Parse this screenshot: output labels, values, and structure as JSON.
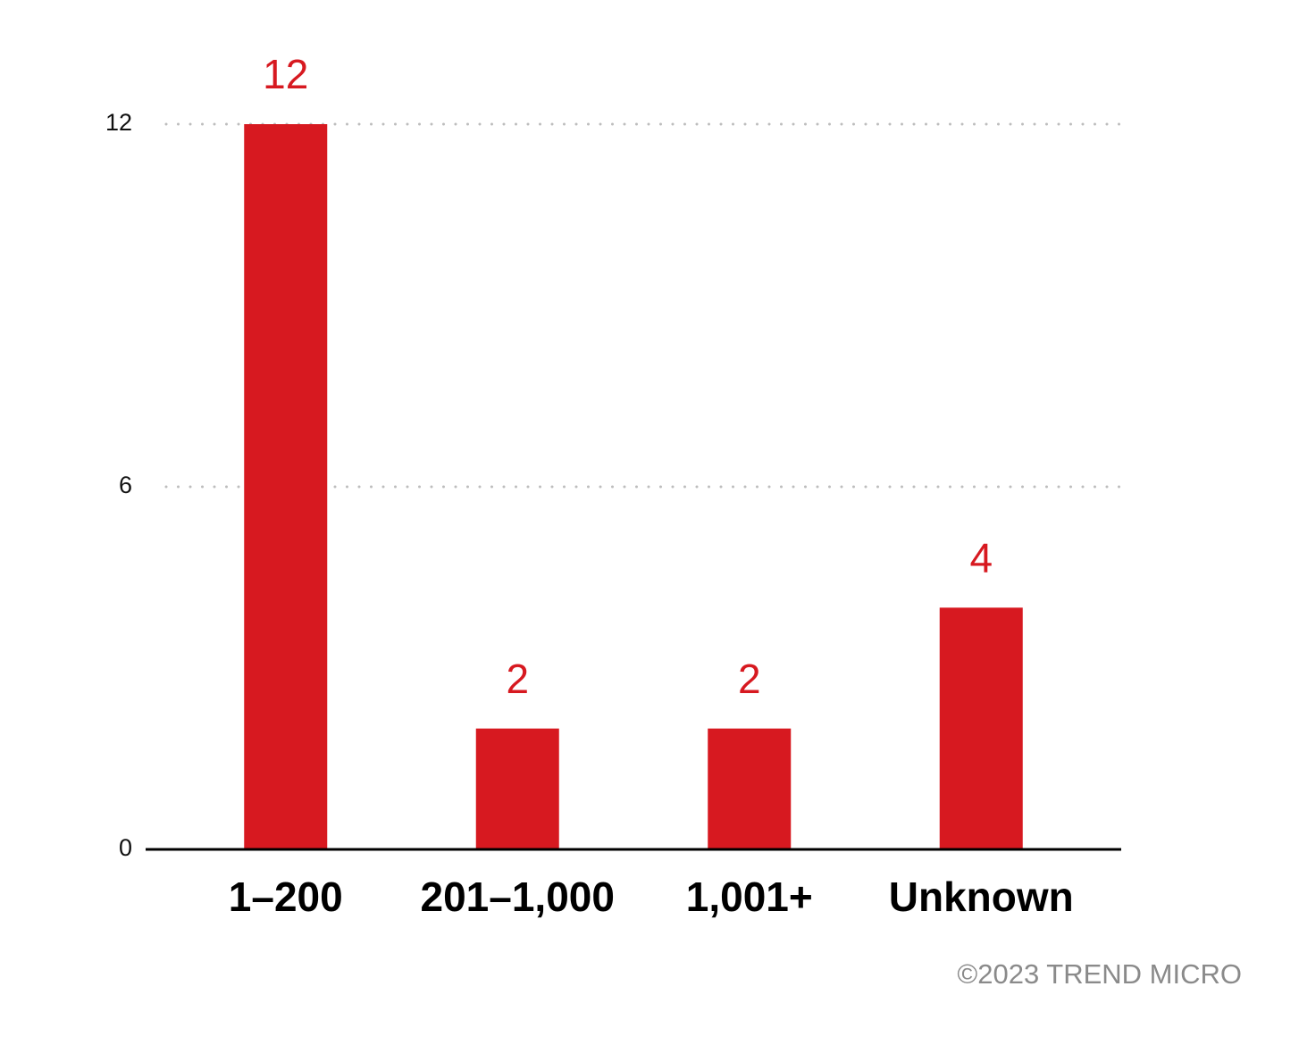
{
  "chart_data": {
    "type": "bar",
    "categories": [
      "1–200",
      "201–1,000",
      "1,001+",
      "Unknown"
    ],
    "values": [
      12,
      2,
      2,
      4
    ],
    "color": "#d71920",
    "ylim": [
      0,
      12
    ],
    "yticks": [
      0,
      6,
      12
    ],
    "grid": true,
    "credit": "©2023 TREND MICRO"
  }
}
